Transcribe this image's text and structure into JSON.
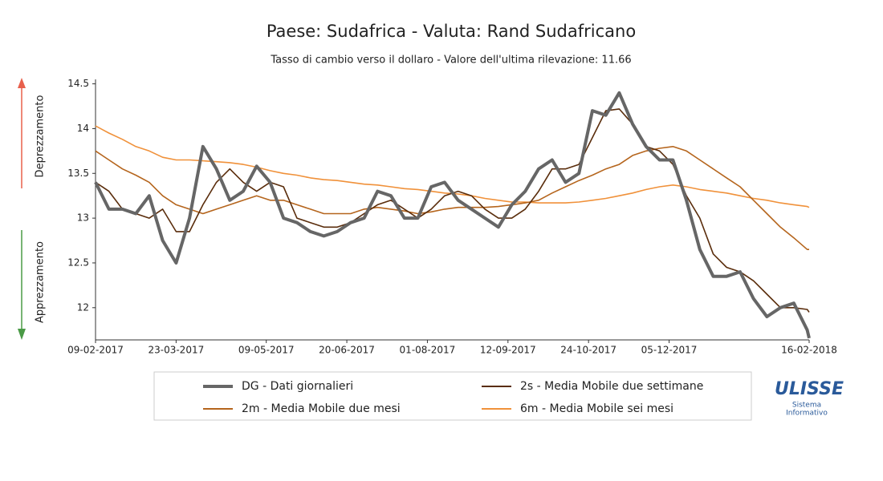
{
  "chart_data": {
    "type": "line",
    "title": "Paese: Sudafrica - Valuta: Rand Sudafricano",
    "subtitle": "Tasso di cambio verso il dollaro - Valore dell'ultima rilevazione: 11.66",
    "y_annotations": [
      "Deprezzamento",
      "Apprezzamento"
    ],
    "x": [
      "09-02-2017",
      "16-02-2017",
      "23-02-2017",
      "02-03-2017",
      "09-03-2017",
      "16-03-2017",
      "23-03-2017",
      "30-03-2017",
      "06-04-2017",
      "13-04-2017",
      "20-04-2017",
      "27-04-2017",
      "04-05-2017",
      "11-05-2017",
      "18-05-2017",
      "25-05-2017",
      "01-06-2017",
      "08-06-2017",
      "15-06-2017",
      "22-06-2017",
      "29-06-2017",
      "06-07-2017",
      "13-07-2017",
      "20-07-2017",
      "27-07-2017",
      "03-08-2017",
      "10-08-2017",
      "17-08-2017",
      "24-08-2017",
      "31-08-2017",
      "07-09-2017",
      "14-09-2017",
      "21-09-2017",
      "28-09-2017",
      "05-10-2017",
      "12-10-2017",
      "19-10-2017",
      "26-10-2017",
      "02-11-2017",
      "09-11-2017",
      "16-11-2017",
      "23-11-2017",
      "30-11-2017",
      "07-12-2017",
      "14-12-2017",
      "21-12-2017",
      "28-12-2017",
      "04-01-2018",
      "11-01-2018",
      "18-01-2018",
      "25-01-2018",
      "01-02-2018",
      "08-02-2018",
      "15-02-2018",
      "16-02-2018"
    ],
    "series": [
      {
        "name": "DG - Dati giornalieri",
        "color": "#666666",
        "width": 4,
        "values": [
          13.4,
          13.1,
          13.1,
          13.05,
          13.25,
          12.75,
          12.5,
          13.0,
          13.8,
          13.55,
          13.2,
          13.3,
          13.58,
          13.4,
          13.0,
          12.95,
          12.85,
          12.8,
          12.85,
          12.95,
          13.0,
          13.3,
          13.25,
          13.0,
          13.0,
          13.35,
          13.4,
          13.2,
          13.1,
          13.0,
          12.9,
          13.15,
          13.3,
          13.55,
          13.65,
          13.4,
          13.5,
          14.2,
          14.15,
          14.4,
          14.05,
          13.8,
          13.65,
          13.65,
          13.2,
          12.65,
          12.35,
          12.35,
          12.4,
          12.1,
          11.9,
          12.0,
          12.05,
          11.75,
          11.66
        ]
      },
      {
        "name": "2s - Media Mobile due settimane",
        "color": "#5a2d0c",
        "width": 1.6,
        "values": [
          13.4,
          13.3,
          13.1,
          13.05,
          13.0,
          13.1,
          12.85,
          12.85,
          13.15,
          13.4,
          13.55,
          13.4,
          13.3,
          13.4,
          13.35,
          13.0,
          12.95,
          12.9,
          12.9,
          12.95,
          13.05,
          13.15,
          13.2,
          13.1,
          13.0,
          13.1,
          13.25,
          13.3,
          13.25,
          13.1,
          13.0,
          13.0,
          13.1,
          13.3,
          13.55,
          13.55,
          13.6,
          13.9,
          14.2,
          14.22,
          14.05,
          13.8,
          13.75,
          13.6,
          13.25,
          13.0,
          12.6,
          12.45,
          12.4,
          12.3,
          12.15,
          12.0,
          12.0,
          11.98,
          11.95
        ]
      },
      {
        "name": "2m - Media Mobile due mesi",
        "color": "#b5651d",
        "width": 1.6,
        "values": [
          13.75,
          13.65,
          13.55,
          13.48,
          13.4,
          13.25,
          13.15,
          13.1,
          13.05,
          13.1,
          13.15,
          13.2,
          13.25,
          13.2,
          13.2,
          13.15,
          13.1,
          13.05,
          13.05,
          13.05,
          13.1,
          13.12,
          13.1,
          13.08,
          13.05,
          13.07,
          13.1,
          13.12,
          13.12,
          13.12,
          13.13,
          13.15,
          13.17,
          13.2,
          13.28,
          13.35,
          13.42,
          13.48,
          13.55,
          13.6,
          13.7,
          13.75,
          13.78,
          13.8,
          13.75,
          13.65,
          13.55,
          13.45,
          13.35,
          13.2,
          13.05,
          12.9,
          12.78,
          12.65,
          12.65
        ]
      },
      {
        "name": "6m - Media Mobile sei mesi",
        "color": "#f0913a",
        "width": 1.6,
        "values": [
          14.03,
          13.95,
          13.88,
          13.8,
          13.75,
          13.68,
          13.65,
          13.65,
          13.64,
          13.63,
          13.62,
          13.6,
          13.57,
          13.53,
          13.5,
          13.48,
          13.45,
          13.43,
          13.42,
          13.4,
          13.38,
          13.37,
          13.35,
          13.33,
          13.32,
          13.3,
          13.28,
          13.27,
          13.25,
          13.22,
          13.2,
          13.18,
          13.18,
          13.17,
          13.17,
          13.17,
          13.18,
          13.2,
          13.22,
          13.25,
          13.28,
          13.32,
          13.35,
          13.37,
          13.35,
          13.32,
          13.3,
          13.28,
          13.25,
          13.22,
          13.2,
          13.17,
          13.15,
          13.13,
          13.12
        ]
      }
    ],
    "xlim": [
      "09-02-2017",
      "16-02-2018"
    ],
    "xticks": [
      "09-02-2017",
      "23-03-2017",
      "09-05-2017",
      "20-06-2017",
      "01-08-2017",
      "12-09-2017",
      "24-10-2017",
      "05-12-2017",
      "16-02-2018"
    ],
    "ylim": [
      11.64,
      14.55
    ],
    "yticks": [
      12,
      12.5,
      13,
      13.5,
      14,
      14.5
    ],
    "grid": false
  },
  "logo": {
    "title": "ULISSE",
    "lines": [
      "Sistema",
      "Informativo"
    ]
  }
}
